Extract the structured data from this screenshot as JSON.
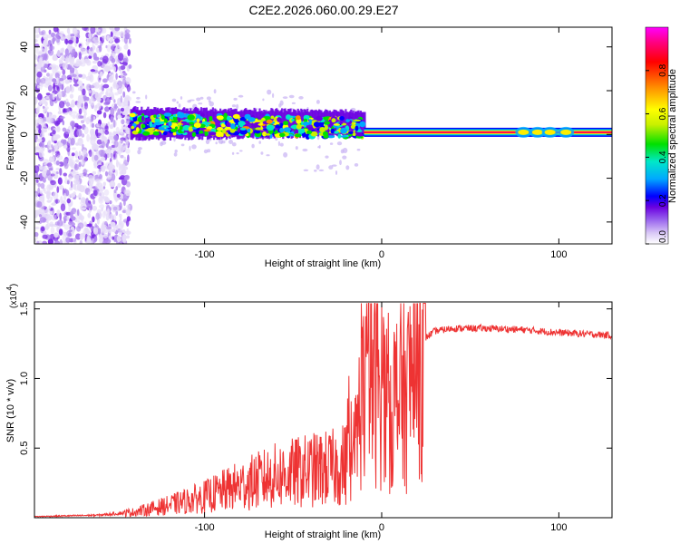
{
  "title": "C2E2.2026.060.00.29.E27",
  "chart_data": [
    {
      "type": "heatmap",
      "panel": "spectrogram",
      "xlabel": "Height of straight line (km)",
      "ylabel": "Frequency (Hz)",
      "xlim": [
        -196,
        130
      ],
      "ylim": [
        -50,
        49
      ],
      "x_ticks": [
        -100,
        0,
        100
      ],
      "x_tick_labels": [
        "-100",
        "0",
        "100"
      ],
      "y_ticks": [
        -40,
        -20,
        0,
        20,
        40
      ],
      "y_tick_labels": [
        "-40",
        "-20",
        "0",
        "20",
        "40"
      ],
      "colorbar": {
        "label": "Normalized spectral amplitude",
        "range": [
          0,
          1
        ],
        "ticks": [
          0.0,
          0.2,
          0.4,
          0.6,
          0.8
        ],
        "tick_labels": [
          "0.0",
          "0.2",
          "0.4",
          "0.6",
          "0.8"
        ],
        "colors": [
          "#ffffff",
          "#d9c8f6",
          "#9a66ee",
          "#6a00e0",
          "#0000ff",
          "#00a8ff",
          "#00e8c8",
          "#00e000",
          "#c8f000",
          "#ffff00",
          "#ff9000",
          "#ff0000",
          "#ff0080",
          "#ff00ff"
        ]
      },
      "regions": [
        {
          "name": "broadband noise",
          "x_range": [
            -196,
            -142
          ],
          "freq_range": [
            -50,
            49
          ],
          "amplitude": 0.12
        },
        {
          "name": "signal band",
          "x_range": [
            -142,
            -10
          ],
          "center_freq_hz": 5,
          "amplitude_range": [
            0.2,
            0.75
          ]
        },
        {
          "name": "carrier line",
          "x_range": [
            -10,
            130
          ],
          "center_freq_hz": 1,
          "amplitude": 0.95
        }
      ]
    },
    {
      "type": "line",
      "panel": "snr",
      "xlabel": "Height of straight line (km)",
      "ylabel": "SNR (10 * v/v)",
      "y_scale_label": "(x10",
      "y_scale_exponent": "4",
      "xlim": [
        -196,
        130
      ],
      "ylim": [
        0,
        15500
      ],
      "x_ticks": [
        -100,
        0,
        100
      ],
      "x_tick_labels": [
        "-100",
        "0",
        "100"
      ],
      "y_ticks": [
        5000,
        10000,
        15000
      ],
      "y_tick_labels": [
        "0.5",
        "1.0",
        "1.5"
      ],
      "color": "#ee3333",
      "envelope": {
        "x": [
          -196,
          -160,
          -140,
          -120,
          -100,
          -80,
          -60,
          -40,
          -25,
          -16,
          -12,
          -8,
          -2,
          5,
          10,
          14,
          20,
          30,
          40,
          60,
          80,
          100,
          130
        ],
        "y": [
          80,
          180,
          400,
          900,
          1500,
          2300,
          3000,
          3400,
          3600,
          4200,
          8000,
          10500,
          9500,
          8000,
          9000,
          8500,
          12500,
          13400,
          13600,
          13600,
          13500,
          13300,
          13100
        ]
      }
    }
  ]
}
